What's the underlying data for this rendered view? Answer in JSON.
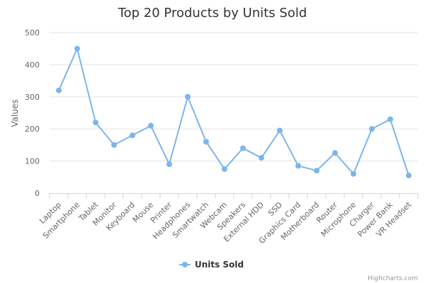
{
  "chart_data": {
    "type": "line",
    "title": "Top 20 Products by Units Sold",
    "ylabel": "Values",
    "xlabel": "",
    "categories": [
      "Laptop",
      "Smartphone",
      "Tablet",
      "Monitor",
      "Keyboard",
      "Mouse",
      "Printer",
      "Headphones",
      "Smartwatch",
      "Webcam",
      "Speakers",
      "External HDD",
      "SSD",
      "Graphics Card",
      "Motherboard",
      "Router",
      "Microphone",
      "Charger",
      "Power Bank",
      "VR Headset"
    ],
    "series": [
      {
        "name": "Units Sold",
        "color": "#7cb5ec",
        "values": [
          320,
          450,
          220,
          150,
          180,
          210,
          90,
          300,
          160,
          75,
          140,
          110,
          195,
          85,
          70,
          125,
          60,
          200,
          230,
          55
        ]
      }
    ],
    "ylim": [
      0,
      500
    ],
    "yticks": [
      0,
      100,
      200,
      300,
      400,
      500
    ],
    "grid": true,
    "legend_position": "bottom-center"
  },
  "credits": "Highcharts.com"
}
